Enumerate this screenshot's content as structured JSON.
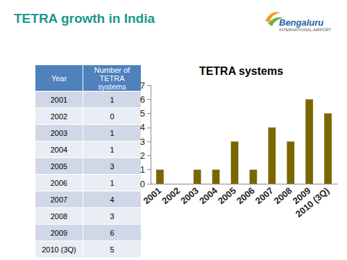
{
  "slide": {
    "title": "TETRA growth in India",
    "logo": {
      "name": "Bengaluru",
      "subtitle": "INTERNATIONAL AIRPORT"
    },
    "table": {
      "header": [
        "Year",
        "Number of TETRA systems"
      ],
      "rows": [
        [
          "2001",
          1
        ],
        [
          "2002",
          0
        ],
        [
          "2003",
          1
        ],
        [
          "2004",
          1
        ],
        [
          "2005",
          3
        ],
        [
          "2006",
          1
        ],
        [
          "2007",
          4
        ],
        [
          "2008",
          3
        ],
        [
          "2009",
          6
        ],
        [
          "2010 (3Q)",
          5
        ]
      ]
    }
  },
  "chart_data": {
    "type": "bar",
    "title": "TETRA systems",
    "categories": [
      "2001",
      "2002",
      "2003",
      "2004",
      "2005",
      "2006",
      "2007",
      "2008",
      "2009",
      "2010 (3Q)"
    ],
    "values": [
      1,
      0,
      1,
      1,
      3,
      1,
      4,
      3,
      6,
      5
    ],
    "color": "#7a6700",
    "ylim": [
      0,
      7
    ],
    "yticks": [
      0,
      1,
      2,
      3,
      4,
      5,
      6,
      7
    ],
    "grid": false
  }
}
